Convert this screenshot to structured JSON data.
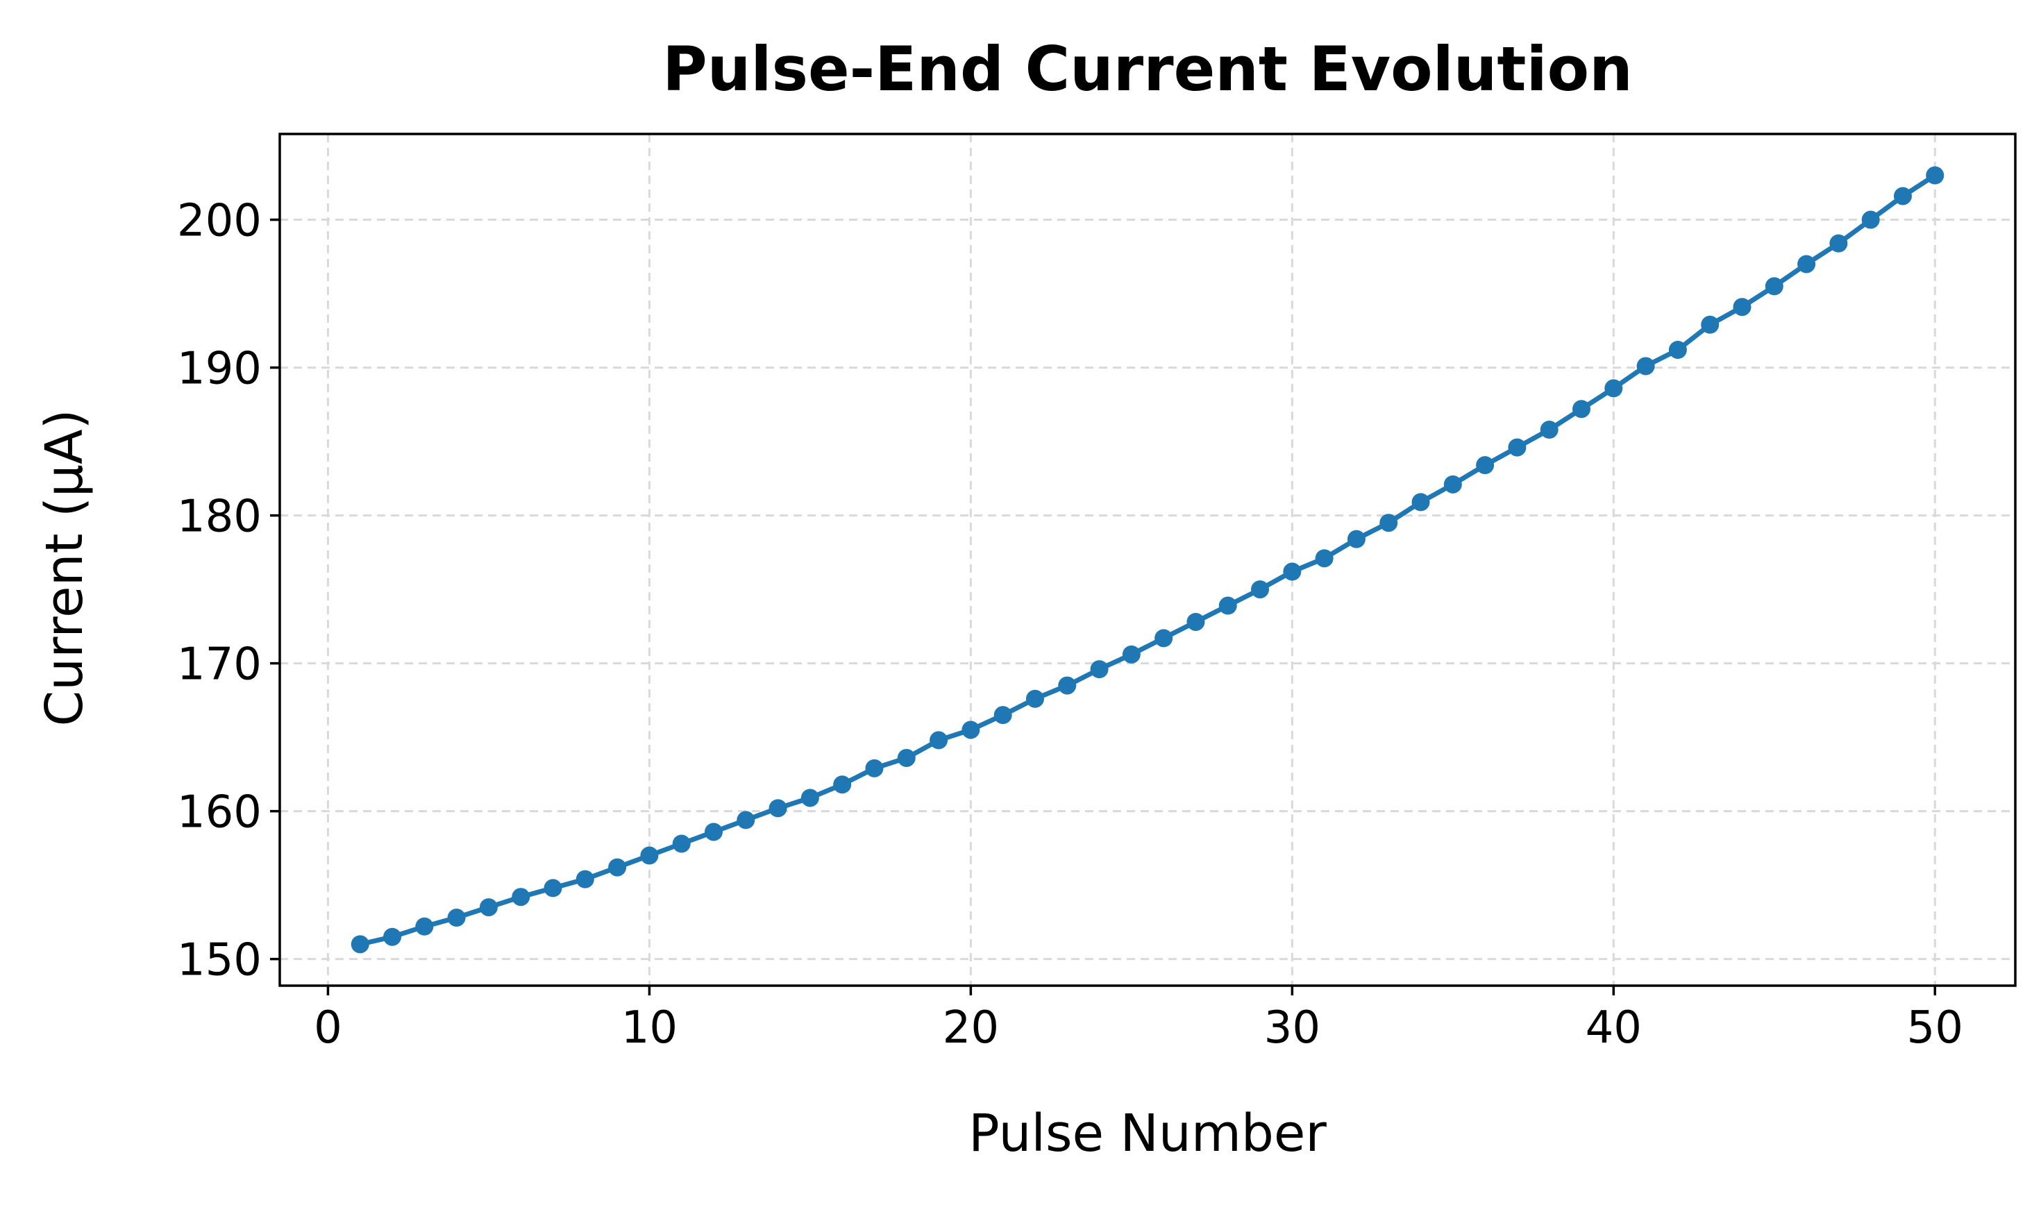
{
  "chart_data": {
    "type": "line",
    "title": "Pulse-End Current Evolution",
    "xlabel": "Pulse Number",
    "ylabel": "Current (μA)",
    "xlim": [
      -1.5,
      52.5
    ],
    "ylim": [
      148.2,
      205.8
    ],
    "xticks": [
      0,
      10,
      20,
      30,
      40,
      50
    ],
    "yticks": [
      150,
      160,
      170,
      180,
      190,
      200
    ],
    "grid": true,
    "legend": "none",
    "series": [
      {
        "color": "#1f77b4",
        "marker": "circle",
        "x": [
          1,
          2,
          3,
          4,
          5,
          6,
          7,
          8,
          9,
          10,
          11,
          12,
          13,
          14,
          15,
          16,
          17,
          18,
          19,
          20,
          21,
          22,
          23,
          24,
          25,
          26,
          27,
          28,
          29,
          30,
          31,
          32,
          33,
          34,
          35,
          36,
          37,
          38,
          39,
          40,
          41,
          42,
          43,
          44,
          45,
          46,
          47,
          48,
          49,
          50
        ],
        "y": [
          151.0,
          151.5,
          152.2,
          152.8,
          153.5,
          154.2,
          154.8,
          155.4,
          156.2,
          157.0,
          157.8,
          158.6,
          159.4,
          160.2,
          160.9,
          161.8,
          162.9,
          163.6,
          164.8,
          165.5,
          166.5,
          167.6,
          168.5,
          169.6,
          170.6,
          171.7,
          172.8,
          173.9,
          175.0,
          176.2,
          177.1,
          178.4,
          179.5,
          180.9,
          182.1,
          183.4,
          184.6,
          185.8,
          187.2,
          188.6,
          190.1,
          191.2,
          192.9,
          194.1,
          195.5,
          197.0,
          198.4,
          200.0,
          201.6,
          203.0
        ]
      }
    ]
  }
}
